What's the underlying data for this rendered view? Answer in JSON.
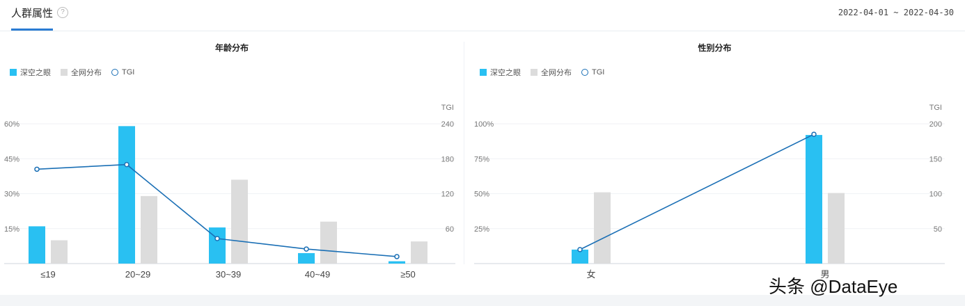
{
  "header": {
    "tab_label": "人群属性",
    "help_icon": "?",
    "date_range": "2022-04-01 ~ 2022-04-30"
  },
  "watermark": "头条 @DataEye",
  "colors": {
    "series_target": "#29c0f2",
    "series_all": "#dcdcdc",
    "tgi_line": "#1a6fb5"
  },
  "chart_data": [
    {
      "type": "bar",
      "title": "年龄分布",
      "legend": [
        "深空之眼",
        "全网分布",
        "TGI"
      ],
      "categories": [
        "≤19",
        "20~29",
        "30~39",
        "40~49",
        "≥50"
      ],
      "series": [
        {
          "name": "深空之眼",
          "values": [
            16,
            59,
            15.5,
            4.5,
            1
          ]
        },
        {
          "name": "全网分布",
          "values": [
            10,
            29,
            36,
            18,
            9.5
          ]
        },
        {
          "name": "TGI",
          "type": "line",
          "axis": "right",
          "values": [
            162,
            170,
            43,
            25,
            12
          ]
        }
      ],
      "y_left": {
        "ticks": [
          "60%",
          "45%",
          "30%",
          "15%"
        ],
        "range": [
          0,
          60
        ]
      },
      "y_right": {
        "label": "TGI",
        "ticks": [
          "240",
          "180",
          "120",
          "60"
        ],
        "range": [
          0,
          240
        ]
      }
    },
    {
      "type": "bar",
      "title": "性别分布",
      "legend": [
        "深空之眼",
        "全网分布",
        "TGI"
      ],
      "categories": [
        "女",
        "男"
      ],
      "series": [
        {
          "name": "深空之眼",
          "values": [
            10,
            92
          ]
        },
        {
          "name": "全网分布",
          "values": [
            51,
            50.5
          ]
        },
        {
          "name": "TGI",
          "type": "line",
          "axis": "right",
          "values": [
            20,
            185
          ]
        }
      ],
      "y_left": {
        "ticks": [
          "100%",
          "75%",
          "50%",
          "25%"
        ],
        "range": [
          0,
          100
        ]
      },
      "y_right": {
        "label": "TGI",
        "ticks": [
          "200",
          "150",
          "100",
          "50"
        ],
        "range": [
          0,
          200
        ]
      }
    }
  ]
}
